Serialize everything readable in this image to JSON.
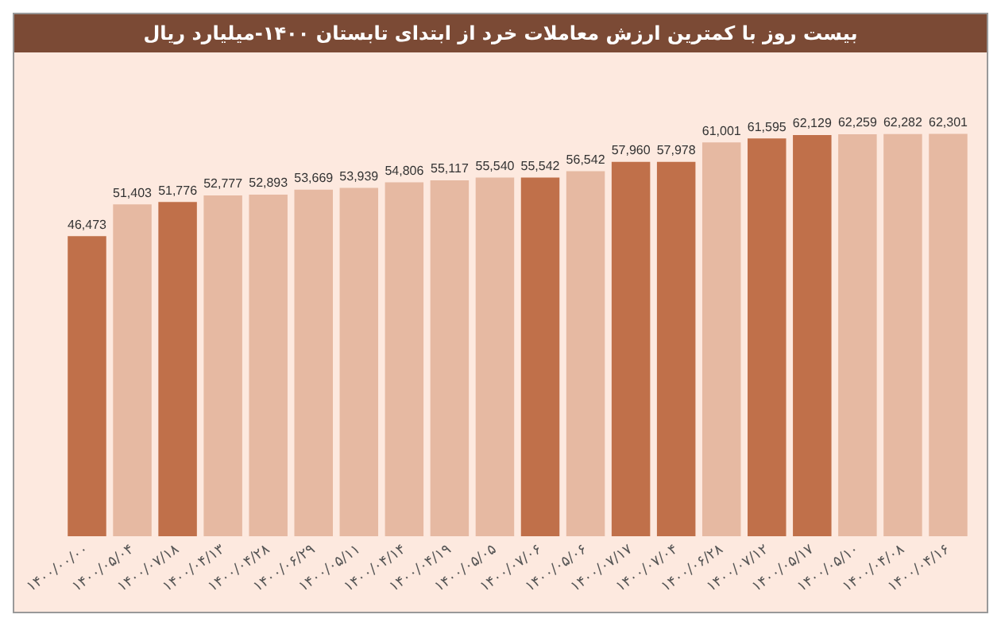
{
  "chart_data": {
    "type": "bar",
    "title": "بیست روز با کمترین ارزش معاملات خرد از ابتدای تابستان ۱۴۰۰-میلیارد ریال",
    "categories": [
      "۱۴۰۰/۰۰/۰۰",
      "۱۴۰۰/۰۵/۰۴",
      "۱۴۰۰/۰۷/۱۸",
      "۱۴۰۰/۰۴/۱۳",
      "۱۴۰۰/۰۴/۲۸",
      "۱۴۰۰/۰۶/۲۹",
      "۱۴۰۰/۰۵/۱۱",
      "۱۴۰۰/۰۴/۱۴",
      "۱۴۰۰/۰۴/۱۹",
      "۱۴۰۰/۰۵/۰۵",
      "۱۴۰۰/۰۷/۰۶",
      "۱۴۰۰/۰۵/۰۶",
      "۱۴۰۰/۰۷/۱۷",
      "۱۴۰۰/۰۷/۰۴",
      "۱۴۰۰/۰۶/۲۸",
      "۱۴۰۰/۰۷/۱۲",
      "۱۴۰۰/۰۵/۱۷",
      "۱۴۰۰/۰۵/۱۰",
      "۱۴۰۰/۰۴/۰۸",
      "۱۴۰۰/۰۴/۱۶"
    ],
    "values": [
      46473,
      51403,
      51776,
      52777,
      52893,
      53669,
      53939,
      54806,
      55117,
      55540,
      55542,
      56542,
      57960,
      57978,
      61001,
      61595,
      62129,
      62259,
      62282,
      62301
    ],
    "value_labels": [
      "46,473",
      "51,403",
      "51,776",
      "52,777",
      "52,893",
      "53,669",
      "53,939",
      "54,806",
      "55,117",
      "55,540",
      "55,542",
      "56,542",
      "57,960",
      "57,978",
      "61,001",
      "61,595",
      "62,129",
      "62,259",
      "62,282",
      "62,301"
    ],
    "colors": [
      "#c0704a",
      "#e6b9a2",
      "#c0704a",
      "#e6b9a2",
      "#e6b9a2",
      "#e6b9a2",
      "#e6b9a2",
      "#e6b9a2",
      "#e6b9a2",
      "#e6b9a2",
      "#c0704a",
      "#e6b9a2",
      "#c0704a",
      "#c0704a",
      "#e6b9a2",
      "#c0704a",
      "#c0704a",
      "#e6b9a2",
      "#e6b9a2",
      "#e6b9a2"
    ],
    "tick_labels": "x",
    "grid": false,
    "legend": false
  }
}
